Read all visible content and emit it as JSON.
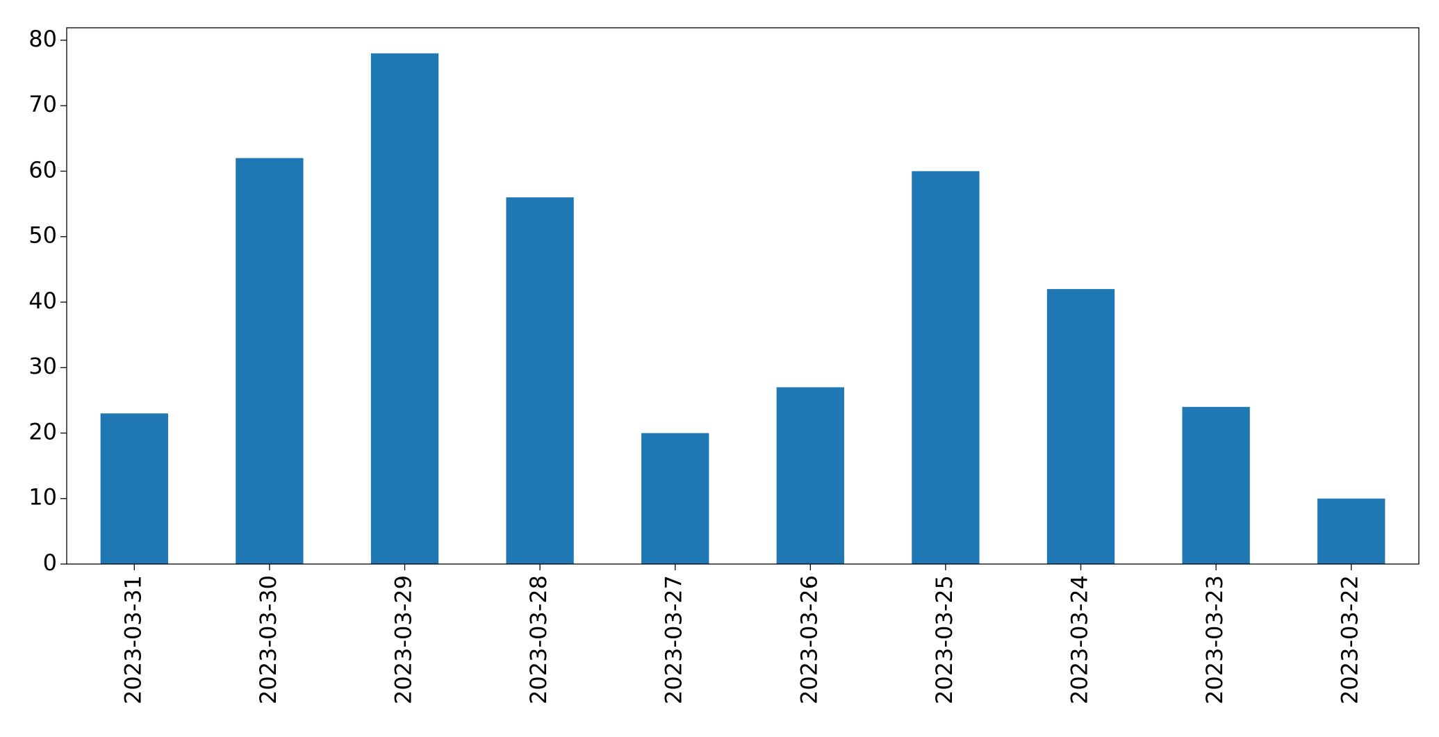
{
  "chart_data": {
    "type": "bar",
    "categories": [
      "2023-03-31",
      "2023-03-30",
      "2023-03-29",
      "2023-03-28",
      "2023-03-27",
      "2023-03-26",
      "2023-03-25",
      "2023-03-24",
      "2023-03-23",
      "2023-03-22"
    ],
    "values": [
      23,
      62,
      78,
      56,
      20,
      27,
      60,
      42,
      24,
      10
    ],
    "color": "#1f77b4",
    "ylim": [
      0,
      81.9
    ],
    "yticks": [
      0,
      10,
      20,
      30,
      40,
      50,
      60,
      70,
      80
    ],
    "grid": false
  }
}
